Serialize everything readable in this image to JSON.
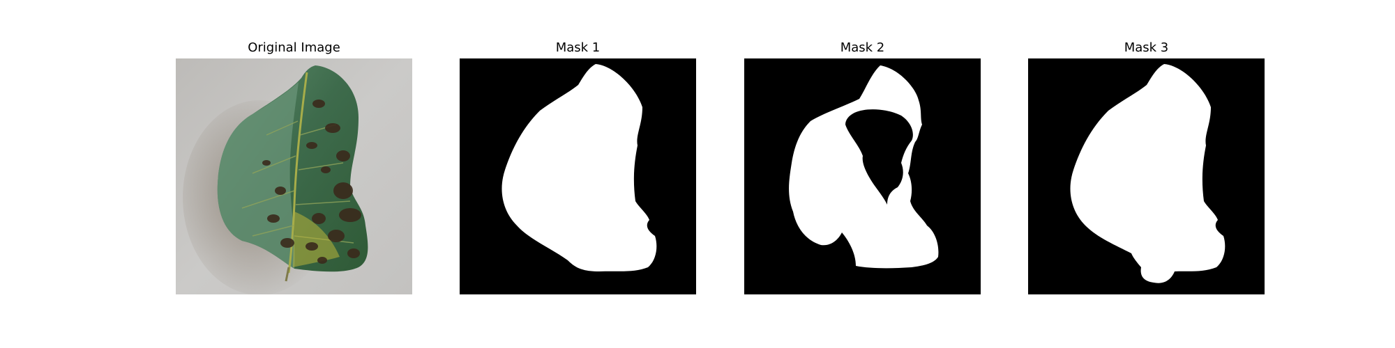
{
  "figure": {
    "panels": [
      {
        "title": "Original Image",
        "kind": "photo"
      },
      {
        "title": "Mask 1",
        "kind": "mask"
      },
      {
        "title": "Mask 2",
        "kind": "mask"
      },
      {
        "title": "Mask 3",
        "kind": "mask"
      }
    ]
  },
  "colors": {
    "background": "#ffffff",
    "mask_background": "#000000",
    "mask_foreground": "#ffffff",
    "photo_surface": "#c8c7c5",
    "leaf_green": "#3f6e4f",
    "leaf_dark_spots": "#3a2a1c",
    "leaf_yellow": "#b9b53a"
  }
}
